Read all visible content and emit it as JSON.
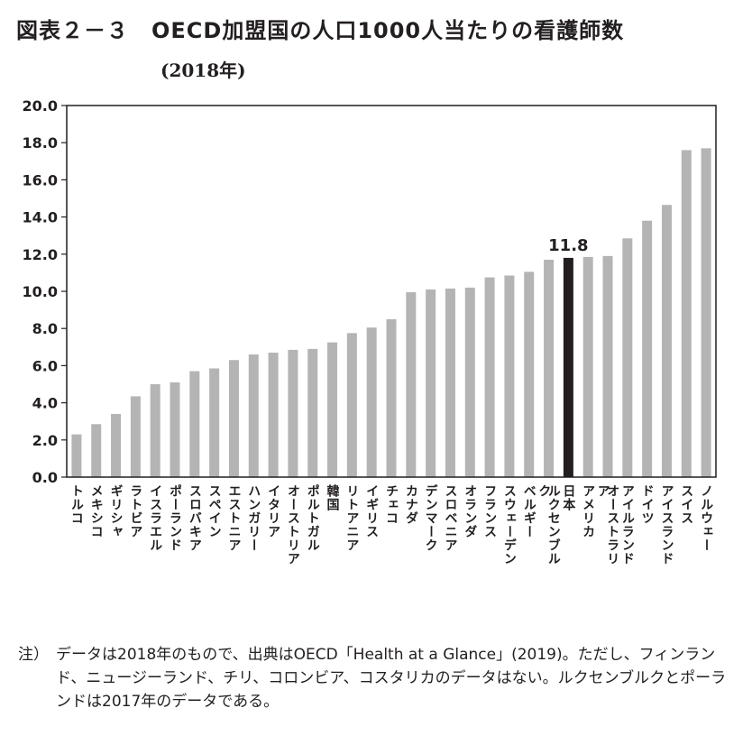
{
  "title": "図表２－３　OECD加盟国の人口1000人当たりの看護師数",
  "subtitle": "(2018年)",
  "note": {
    "label": "注）",
    "text": "データは2018年のもので、出典はOECD「Health at a Glance」(2019)。ただし、フィンランド、ニュージーランド、チリ、コロンビア、コスタリカのデータはない。ルクセンブルクとポーランドは2017年のデータである。"
  },
  "chart_data": {
    "type": "bar",
    "title": "OECD加盟国の人口1000人当たりの看護師数",
    "xlabel": "",
    "ylabel": "",
    "ylim": [
      0,
      20
    ],
    "yticks": [
      0,
      2,
      4,
      6,
      8,
      10,
      12,
      14,
      16,
      18,
      20
    ],
    "ytick_labels": [
      "0.0",
      "2.0",
      "4.0",
      "6.0",
      "8.0",
      "10.0",
      "12.0",
      "14.0",
      "16.0",
      "18.0",
      "20.0"
    ],
    "categories": [
      "トルコ",
      "メキシコ",
      "ギリシャ",
      "ラトビア",
      "イスラエル",
      "ポーランド",
      "スロバキア",
      "スペイン",
      "エストニア",
      "ハンガリー",
      "イタリア",
      "オーストリア",
      "ポルトガル",
      "韓国",
      "リトアニア",
      "イギリス",
      "チェコ",
      "カナダ",
      "デンマーク",
      "スロベニア",
      "オランダ",
      "フランス",
      "スウェーデン",
      "ベルギー",
      "ルクセンブルク",
      "日本",
      "アメリカ",
      "オーストラリア",
      "アイルランド",
      "ドイツ",
      "アイスランド",
      "スイス",
      "ノルウェー"
    ],
    "values": [
      2.3,
      2.85,
      3.4,
      4.35,
      5.0,
      5.1,
      5.7,
      5.85,
      6.3,
      6.6,
      6.7,
      6.85,
      6.9,
      7.25,
      7.75,
      8.05,
      8.5,
      9.95,
      10.1,
      10.15,
      10.2,
      10.75,
      10.85,
      11.05,
      11.7,
      11.8,
      11.85,
      11.9,
      12.85,
      13.8,
      14.65,
      17.6,
      17.7
    ],
    "highlight": "日本",
    "highlight_label": "11.8",
    "colors": {
      "bar": "#b4b4b4",
      "highlight": "#231f20",
      "axis": "#231f20"
    }
  }
}
